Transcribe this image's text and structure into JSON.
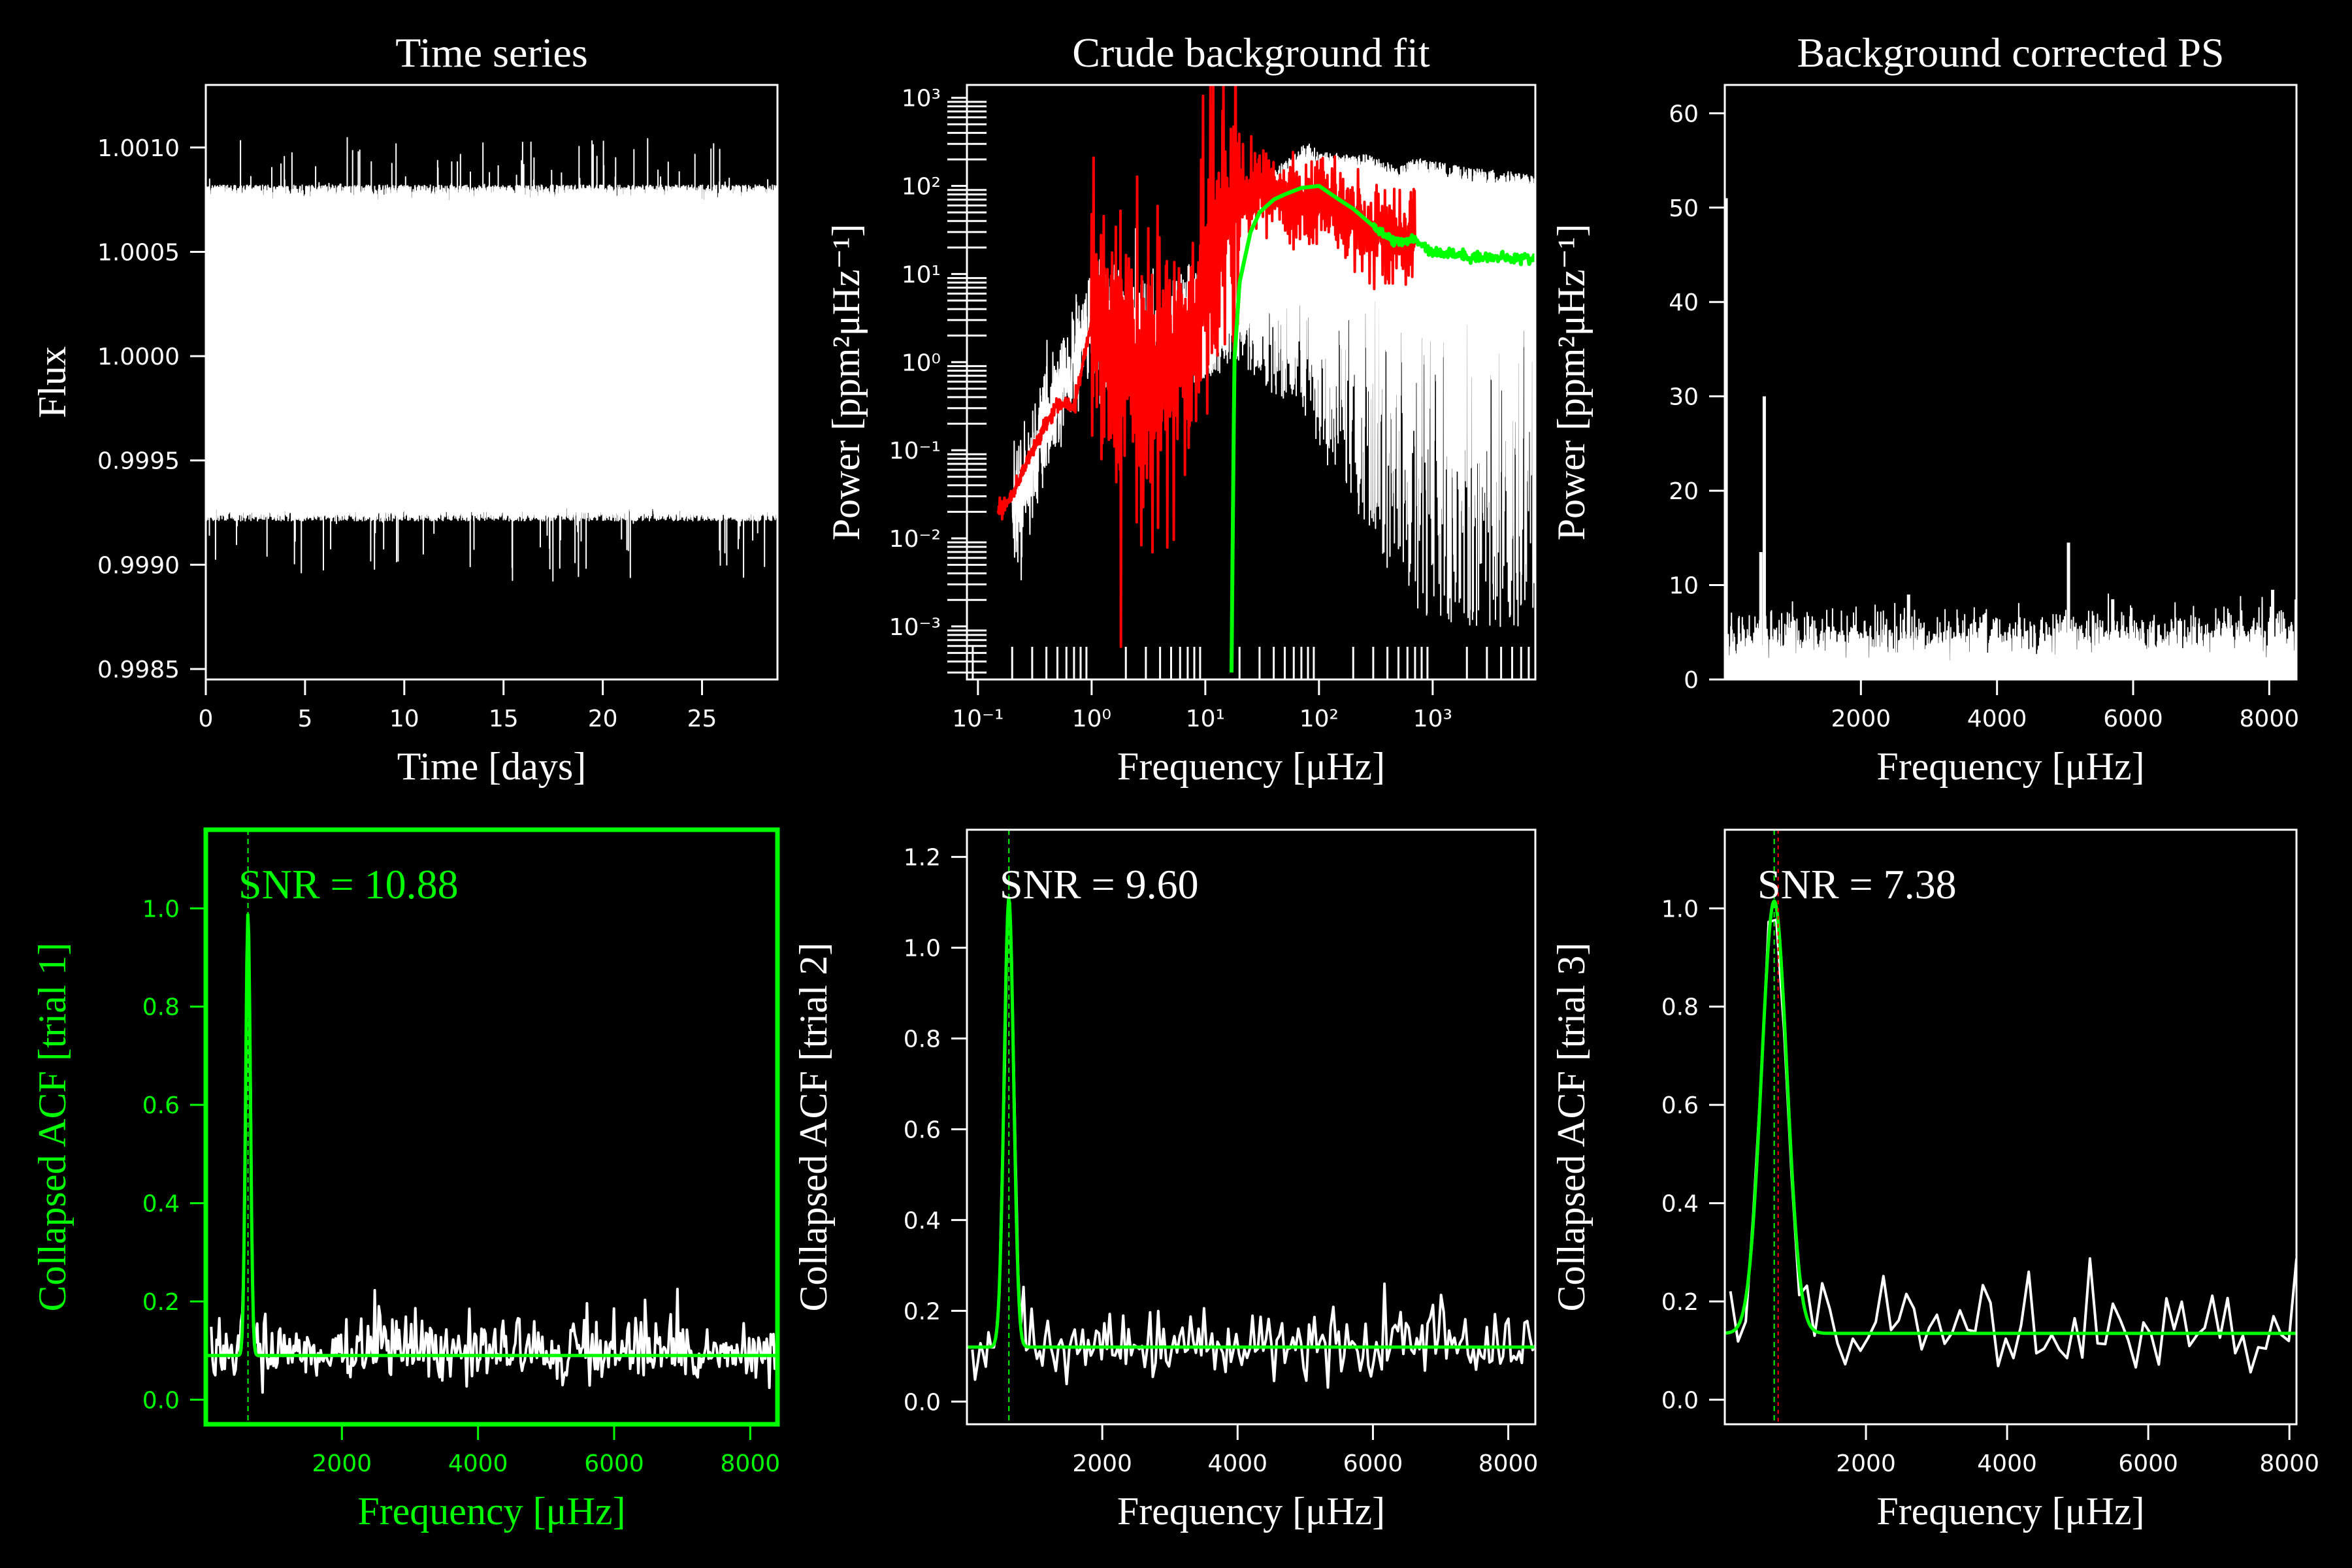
{
  "colors": {
    "background": "#000000",
    "foreground": "#ffffff",
    "green": "#00ff00",
    "red": "#ff0000"
  },
  "chart_data": [
    {
      "id": "time_series",
      "type": "line",
      "title": "Time series",
      "xlabel": "Time [days]",
      "ylabel": "Flux",
      "xlim": [
        0,
        28.8
      ],
      "ylim": [
        0.99845,
        1.0013
      ],
      "xticks": [
        0,
        5,
        10,
        15,
        20,
        25
      ],
      "yticks": [
        0.9985,
        0.999,
        0.9995,
        1.0,
        1.0005,
        1.001
      ],
      "ytick_labels": [
        "0.9985",
        "0.9990",
        "0.9995",
        "1.0000",
        "1.0005",
        "1.0010"
      ],
      "series": [
        {
          "color": "#ffffff",
          "x_range": [
            0,
            28.8
          ],
          "band_low": 0.99921,
          "band_high": 1.00082,
          "min": 0.99862,
          "max": 1.00106
        }
      ]
    },
    {
      "id": "background_fit",
      "type": "line",
      "title": "Crude background fit",
      "xlabel": "Frequency [μHz]",
      "ylabel": "Power [ppm²μHz⁻¹]",
      "xscale": "log",
      "yscale": "log",
      "xlim": [
        0.08,
        8000
      ],
      "ylim": [
        0.00025,
        1400
      ],
      "xticks": [
        0.1,
        1,
        10,
        100,
        1000
      ],
      "xtick_labels": [
        "10⁻¹",
        "10⁰",
        "10¹",
        "10²",
        "10³"
      ],
      "yticks": [
        0.001,
        0.01,
        0.1,
        1,
        10,
        100,
        1000
      ],
      "ytick_labels": [
        "10⁻³",
        "10⁻²",
        "10⁻¹",
        "10⁰",
        "10¹",
        "10²",
        "10³"
      ],
      "series": [
        {
          "color": "#ffffff",
          "x": [
            0.2,
            1,
            5,
            10,
            20,
            50,
            80,
            100,
            300,
            500,
            700,
            1000,
            2000,
            5000,
            8000
          ],
          "y": [
            0.02,
            3,
            2,
            10,
            60,
            120,
            200,
            150,
            140,
            100,
            130,
            120,
            100,
            90,
            80
          ]
        },
        {
          "color": "#ff0000",
          "x": [
            0.15,
            0.2,
            0.3,
            0.5,
            0.7,
            1,
            1.5,
            2,
            3,
            5,
            8,
            10,
            15,
            20,
            30,
            50,
            80,
            100,
            150,
            200,
            300,
            500,
            700
          ],
          "y": [
            0.02,
            0.03,
            0.1,
            0.35,
            0.3,
            3,
            1,
            2,
            0.5,
            1.5,
            2,
            8,
            60,
            80,
            100,
            80,
            60,
            70,
            50,
            40,
            30,
            25,
            25
          ]
        },
        {
          "color": "#00ff00",
          "x": [
            17,
            18,
            20,
            25,
            30,
            40,
            50,
            70,
            100,
            150,
            200,
            300,
            500,
            700,
            1000,
            2000,
            5000,
            8000
          ],
          "y": [
            0.0003,
            1,
            8,
            30,
            50,
            70,
            80,
            95,
            100,
            70,
            55,
            35,
            22,
            25,
            18,
            16,
            15,
            15
          ]
        }
      ]
    },
    {
      "id": "bg_corrected",
      "type": "line",
      "title": "Background corrected PS",
      "xlabel": "Frequency [μHz]",
      "ylabel": "Power [ppm²μHz⁻¹]",
      "xlim": [
        0,
        8400
      ],
      "ylim": [
        0,
        63
      ],
      "xticks": [
        2000,
        4000,
        6000,
        8000
      ],
      "yticks": [
        0,
        10,
        20,
        30,
        40,
        50,
        60
      ],
      "series": [
        {
          "color": "#ffffff",
          "x_range": [
            0,
            8400
          ],
          "baseline": 4.5,
          "noise": 1.5,
          "spikes": [
            {
              "x": 20,
              "y": 51
            },
            {
              "x": 580,
              "y": 30
            },
            {
              "x": 530,
              "y": 13.5
            },
            {
              "x": 5050,
              "y": 14.5
            },
            {
              "x": 2700,
              "y": 9
            },
            {
              "x": 5700,
              "y": 8.5
            },
            {
              "x": 8050,
              "y": 9.5
            }
          ]
        }
      ]
    },
    {
      "id": "acf_trial1",
      "type": "line",
      "annotation": "SNR = 10.88",
      "selected": true,
      "xlabel": "Frequency [μHz]",
      "ylabel": "Collapsed ACF [trial 1]",
      "xlim": [
        0,
        8400
      ],
      "ylim": [
        -0.05,
        1.16
      ],
      "xticks": [
        2000,
        4000,
        6000,
        8000
      ],
      "yticks": [
        0,
        0.2,
        0.4,
        0.6,
        0.8,
        1.0
      ],
      "ytick_labels": [
        "0.0",
        "0.2",
        "0.4",
        "0.6",
        "0.8",
        "1.0"
      ],
      "fit": {
        "center": 620,
        "amplitude": 0.9,
        "width": 35,
        "offset": 0.09
      },
      "series": [
        {
          "color": "#ffffff",
          "baseline": 0.09,
          "noise": 0.04,
          "points": 420
        }
      ],
      "vline": 620
    },
    {
      "id": "acf_trial2",
      "type": "line",
      "annotation": "SNR = 9.60",
      "xlabel": "Frequency [μHz]",
      "ylabel": "Collapsed ACF [trial 2]",
      "xlim": [
        0,
        8400
      ],
      "ylim": [
        -0.05,
        1.26
      ],
      "xticks": [
        2000,
        4000,
        6000,
        8000
      ],
      "yticks": [
        0,
        0.2,
        0.4,
        0.6,
        0.8,
        1.0,
        1.2
      ],
      "ytick_labels": [
        "0.0",
        "0.2",
        "0.4",
        "0.6",
        "0.8",
        "1.0",
        "1.2"
      ],
      "fit": {
        "center": 620,
        "amplitude": 0.99,
        "width": 70,
        "offset": 0.12
      },
      "series": [
        {
          "color": "#ffffff",
          "baseline": 0.12,
          "noise": 0.05,
          "points": 210
        }
      ],
      "vline": 620
    },
    {
      "id": "acf_trial3",
      "type": "line",
      "annotation": "SNR = 7.38",
      "xlabel": "Frequency [μHz]",
      "ylabel": "Collapsed ACF [trial 3]",
      "xlim": [
        0,
        8100
      ],
      "ylim": [
        -0.05,
        1.16
      ],
      "xticks": [
        2000,
        4000,
        6000,
        8000
      ],
      "yticks": [
        0,
        0.2,
        0.4,
        0.6,
        0.8,
        1.0
      ],
      "ytick_labels": [
        "0.0",
        "0.2",
        "0.4",
        "0.6",
        "0.8",
        "1.0"
      ],
      "fit": {
        "center": 700,
        "amplitude": 0.88,
        "width": 180,
        "offset": 0.135
      },
      "series": [
        {
          "color": "#ffffff",
          "baseline": 0.14,
          "noise": 0.06,
          "points": 75
        }
      ],
      "vline": 700
    }
  ]
}
